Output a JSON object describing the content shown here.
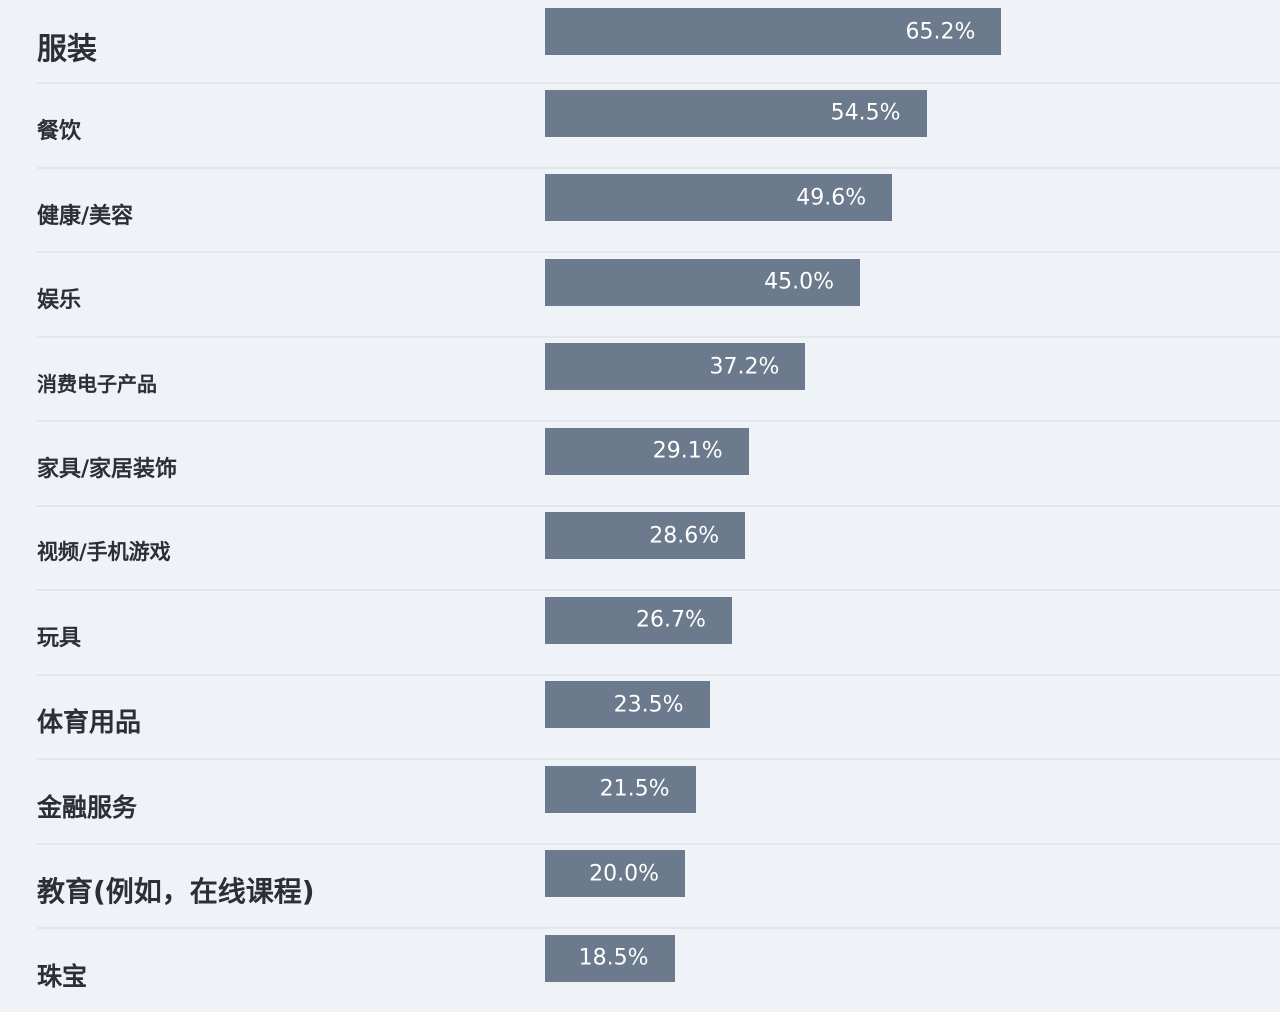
{
  "chart_data": {
    "type": "bar",
    "orientation": "horizontal",
    "title": "",
    "xlabel": "",
    "ylabel": "",
    "xlim": [
      0,
      100
    ],
    "grid": false,
    "bar_color": "#6b7a8c",
    "categories": [
      "服装",
      "餐饮",
      "健康/美容",
      "娱乐",
      "消费电子产品",
      "家具/家居装饰",
      "视频/手机游戏",
      "玩具",
      "体育用品",
      "金融服务",
      "教育(例如，在线课程)",
      "珠宝"
    ],
    "values": [
      65.2,
      54.5,
      49.6,
      45.0,
      37.2,
      29.1,
      28.6,
      26.7,
      23.5,
      21.5,
      20.0,
      18.5
    ],
    "value_labels": [
      "65.2%",
      "54.5%",
      "49.6%",
      "45.0%",
      "37.2%",
      "29.1%",
      "28.6%",
      "26.7%",
      "23.5%",
      "21.5%",
      "20.0%",
      "18.5%"
    ]
  }
}
